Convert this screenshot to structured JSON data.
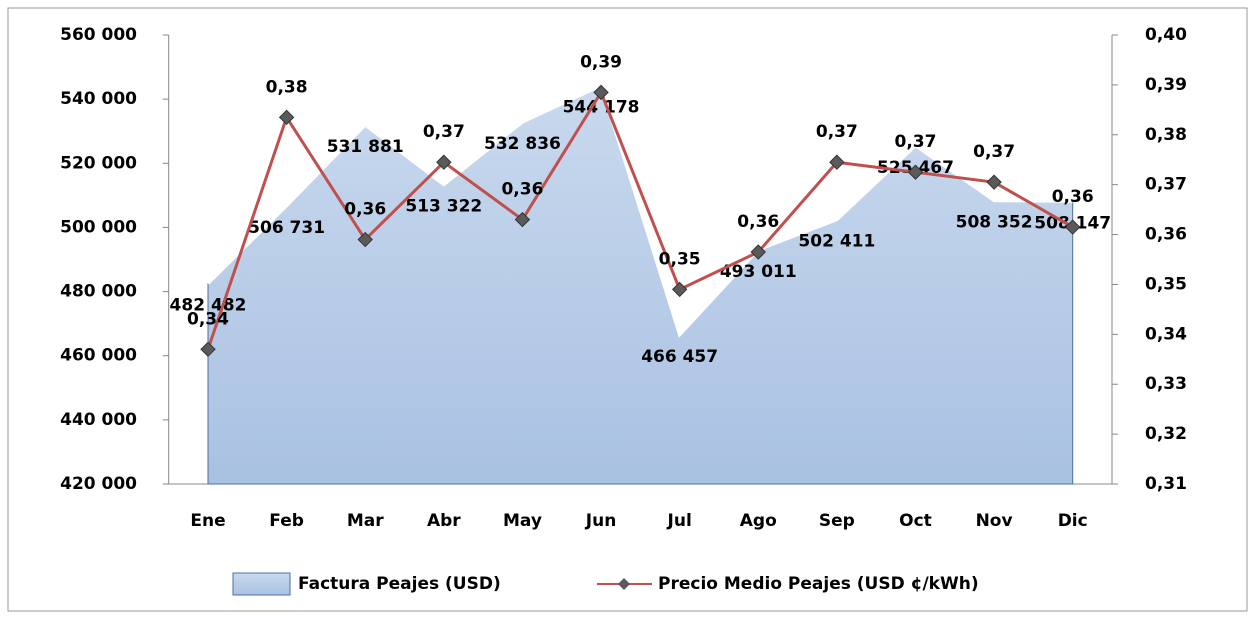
{
  "chart_data": {
    "type": "area-line",
    "categories": [
      "Ene",
      "Feb",
      "Mar",
      "Abr",
      "May",
      "Jun",
      "Jul",
      "Ago",
      "Sep",
      "Oct",
      "Nov",
      "Dic"
    ],
    "series": [
      {
        "name": "Factura Peajes (USD)",
        "type": "area",
        "color": "#c6d6ec",
        "values": [
          482482,
          506731,
          531881,
          513322,
          532836,
          544178,
          466457,
          493011,
          502411,
          525467,
          508352,
          508147
        ],
        "value_labels": [
          "482 482",
          "506 731",
          "531 881",
          "513 322",
          "532 836",
          "544 178",
          "466 457",
          "493 011",
          "502 411",
          "525 467",
          "508 352",
          "508 147"
        ]
      },
      {
        "name": "Precio Medio Peajes (USD ¢/kWh)",
        "type": "line",
        "axis": "y2",
        "color": "#c0504d",
        "values": [
          0.337,
          0.3835,
          0.359,
          0.3745,
          0.363,
          0.3885,
          0.349,
          0.3565,
          0.3745,
          0.3725,
          0.3705,
          0.3615
        ],
        "value_labels": [
          "0,34",
          "0,38",
          "0,36",
          "0,37",
          "0,36",
          "0,39",
          "0,35",
          "0,36",
          "0,37",
          "0,37",
          "0,37",
          "0,36"
        ]
      }
    ],
    "ylim": [
      420000,
      560000
    ],
    "yticks": [
      {
        "value": 420000,
        "label": "420 000"
      },
      {
        "value": 440000,
        "label": "440 000"
      },
      {
        "value": 460000,
        "label": "460 000"
      },
      {
        "value": 480000,
        "label": "480 000"
      },
      {
        "value": 500000,
        "label": "500 000"
      },
      {
        "value": 520000,
        "label": "520 000"
      },
      {
        "value": 540000,
        "label": "540 000"
      },
      {
        "value": 560000,
        "label": "560 000"
      }
    ],
    "y2lim": [
      0.31,
      0.4
    ],
    "y2ticks": [
      {
        "value": 0.31,
        "label": "0,31"
      },
      {
        "value": 0.32,
        "label": "0,32"
      },
      {
        "value": 0.33,
        "label": "0,33"
      },
      {
        "value": 0.34,
        "label": "0,34"
      },
      {
        "value": 0.35,
        "label": "0,35"
      },
      {
        "value": 0.36,
        "label": "0,36"
      },
      {
        "value": 0.37,
        "label": "0,37"
      },
      {
        "value": 0.38,
        "label": "0,38"
      },
      {
        "value": 0.39,
        "label": "0,39"
      },
      {
        "value": 0.4,
        "label": "0,40"
      }
    ],
    "legend": "bottom"
  }
}
